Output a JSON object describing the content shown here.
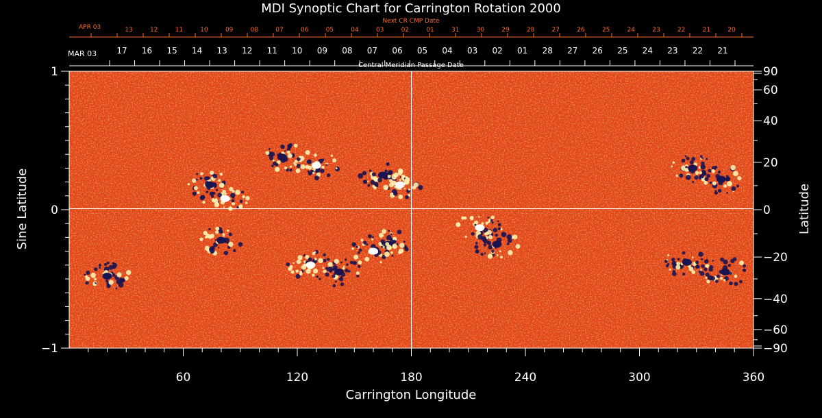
{
  "chart_data": {
    "type": "heatmap",
    "title": "MDI Synoptic Chart for Carrington Rotation 2000",
    "xlabel": "Carrington Longitude",
    "ylabel_left": "Sine Latitude",
    "ylabel_right": "Latitude",
    "xlim": [
      0,
      360
    ],
    "ylim": [
      -1,
      1
    ],
    "x_ticks": [
      60,
      120,
      180,
      240,
      300,
      360
    ],
    "y_ticks_left": [
      "1",
      "0",
      "−1"
    ],
    "y_ticks_left_values": [
      1,
      0,
      -1
    ],
    "lat_ticks": [
      90,
      60,
      40,
      20,
      0,
      -20,
      -40,
      -60,
      -90
    ],
    "lat_tick_labels": [
      "90",
      "60",
      "40",
      "20",
      "0",
      "−20",
      "−40",
      "−60",
      "−90"
    ],
    "grid": "lines at longitude 180 and sine latitude 0",
    "top_axis": {
      "label": "Central Meridian Passage Date",
      "month_label": "MAR 03",
      "dates": [
        "17",
        "16",
        "15",
        "14",
        "13",
        "12",
        "11",
        "10",
        "09",
        "08",
        "07",
        "06",
        "05",
        "04",
        "03",
        "02",
        "01",
        "28",
        "27",
        "26",
        "25",
        "24",
        "23",
        "22",
        "21"
      ]
    },
    "next_axis": {
      "label": "Next CR CMP Date",
      "month_label": "APR 03",
      "dates": [
        "13",
        "12",
        "11",
        "10",
        "09",
        "08",
        "07",
        "06",
        "05",
        "04",
        "03",
        "02",
        "01",
        "31",
        "30",
        "29",
        "28",
        "27",
        "26",
        "25",
        "24",
        "23",
        "22",
        "21",
        "20"
      ]
    },
    "colors": {
      "background_field": "#e8471a",
      "positive_polarity": "#fff2b0",
      "negative_polarity": "#1a1450",
      "next_axis": "#ff6a2a"
    },
    "regions": [
      {
        "lon": 74,
        "sinlat": 0.18,
        "polarity": "mixed"
      },
      {
        "lon": 82,
        "sinlat": 0.08,
        "polarity": "positive"
      },
      {
        "lon": 112,
        "sinlat": 0.38,
        "polarity": "negative"
      },
      {
        "lon": 130,
        "sinlat": 0.32,
        "polarity": "positive"
      },
      {
        "lon": 165,
        "sinlat": 0.25,
        "polarity": "negative"
      },
      {
        "lon": 174,
        "sinlat": 0.18,
        "polarity": "positive"
      },
      {
        "lon": 328,
        "sinlat": 0.3,
        "polarity": "negative"
      },
      {
        "lon": 343,
        "sinlat": 0.22,
        "polarity": "negative"
      },
      {
        "lon": 80,
        "sinlat": -0.22,
        "polarity": "negative"
      },
      {
        "lon": 168,
        "sinlat": -0.25,
        "polarity": "negative"
      },
      {
        "lon": 160,
        "sinlat": -0.3,
        "polarity": "positive"
      },
      {
        "lon": 142,
        "sinlat": -0.45,
        "polarity": "negative"
      },
      {
        "lon": 127,
        "sinlat": -0.4,
        "polarity": "positive"
      },
      {
        "lon": 20,
        "sinlat": -0.48,
        "polarity": "negative"
      },
      {
        "lon": 216,
        "sinlat": -0.13,
        "polarity": "positive"
      },
      {
        "lon": 225,
        "sinlat": -0.25,
        "polarity": "negative"
      },
      {
        "lon": 325,
        "sinlat": -0.38,
        "polarity": "negative"
      },
      {
        "lon": 345,
        "sinlat": -0.45,
        "polarity": "negative"
      }
    ]
  }
}
